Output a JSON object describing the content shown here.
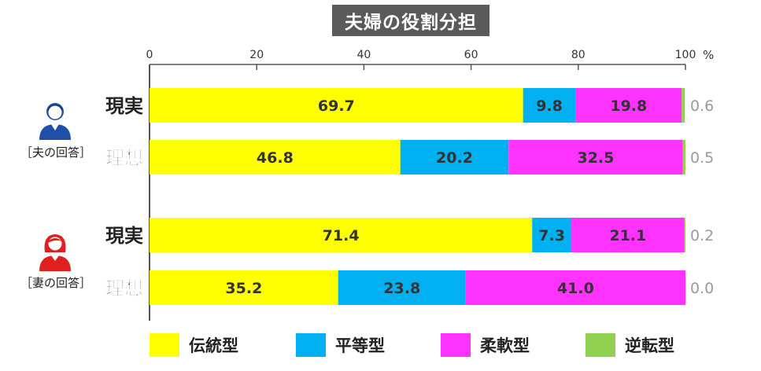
{
  "title": "夫婦の役割分担",
  "unit_label": "%",
  "groups": [
    {
      "label": "［夫の回答］",
      "icon": "male-person-icon",
      "color": "#1f4fa8"
    },
    {
      "label": "［妻の回答］",
      "icon": "female-person-icon",
      "color": "#e02020"
    }
  ],
  "legend": [
    {
      "label": "伝統型",
      "color": "#ffff00"
    },
    {
      "label": "平等型",
      "color": "#00b0f0"
    },
    {
      "label": "柔軟型",
      "color": "#ff33ff"
    },
    {
      "label": "逆転型",
      "color": "#92d050"
    }
  ],
  "chart_data": {
    "type": "bar",
    "orientation": "horizontal",
    "stacked": true,
    "xlim": [
      0,
      100
    ],
    "xticks": [
      0,
      20,
      40,
      60,
      80,
      100
    ],
    "categories": [
      "現実",
      "理想",
      "現実",
      "理想"
    ],
    "series": [
      {
        "name": "伝統型",
        "color": "#ffff00",
        "values": [
          69.7,
          46.8,
          71.4,
          35.2
        ]
      },
      {
        "name": "平等型",
        "color": "#00b0f0",
        "values": [
          9.8,
          20.2,
          7.3,
          23.8
        ]
      },
      {
        "name": "柔軟型",
        "color": "#ff33ff",
        "values": [
          19.8,
          32.5,
          21.1,
          41.0
        ]
      },
      {
        "name": "逆転型",
        "color": "#92d050",
        "values": [
          0.6,
          0.5,
          0.2,
          0.0
        ]
      }
    ],
    "value_labels": [
      [
        "69.7",
        "9.8",
        "19.8",
        "0.6"
      ],
      [
        "46.8",
        "20.2",
        "32.5",
        "0.5"
      ],
      [
        "71.4",
        "7.3",
        "21.1",
        "0.2"
      ],
      [
        "35.2",
        "23.8",
        "41.0",
        "0.0"
      ]
    ],
    "legend_position": "bottom"
  }
}
